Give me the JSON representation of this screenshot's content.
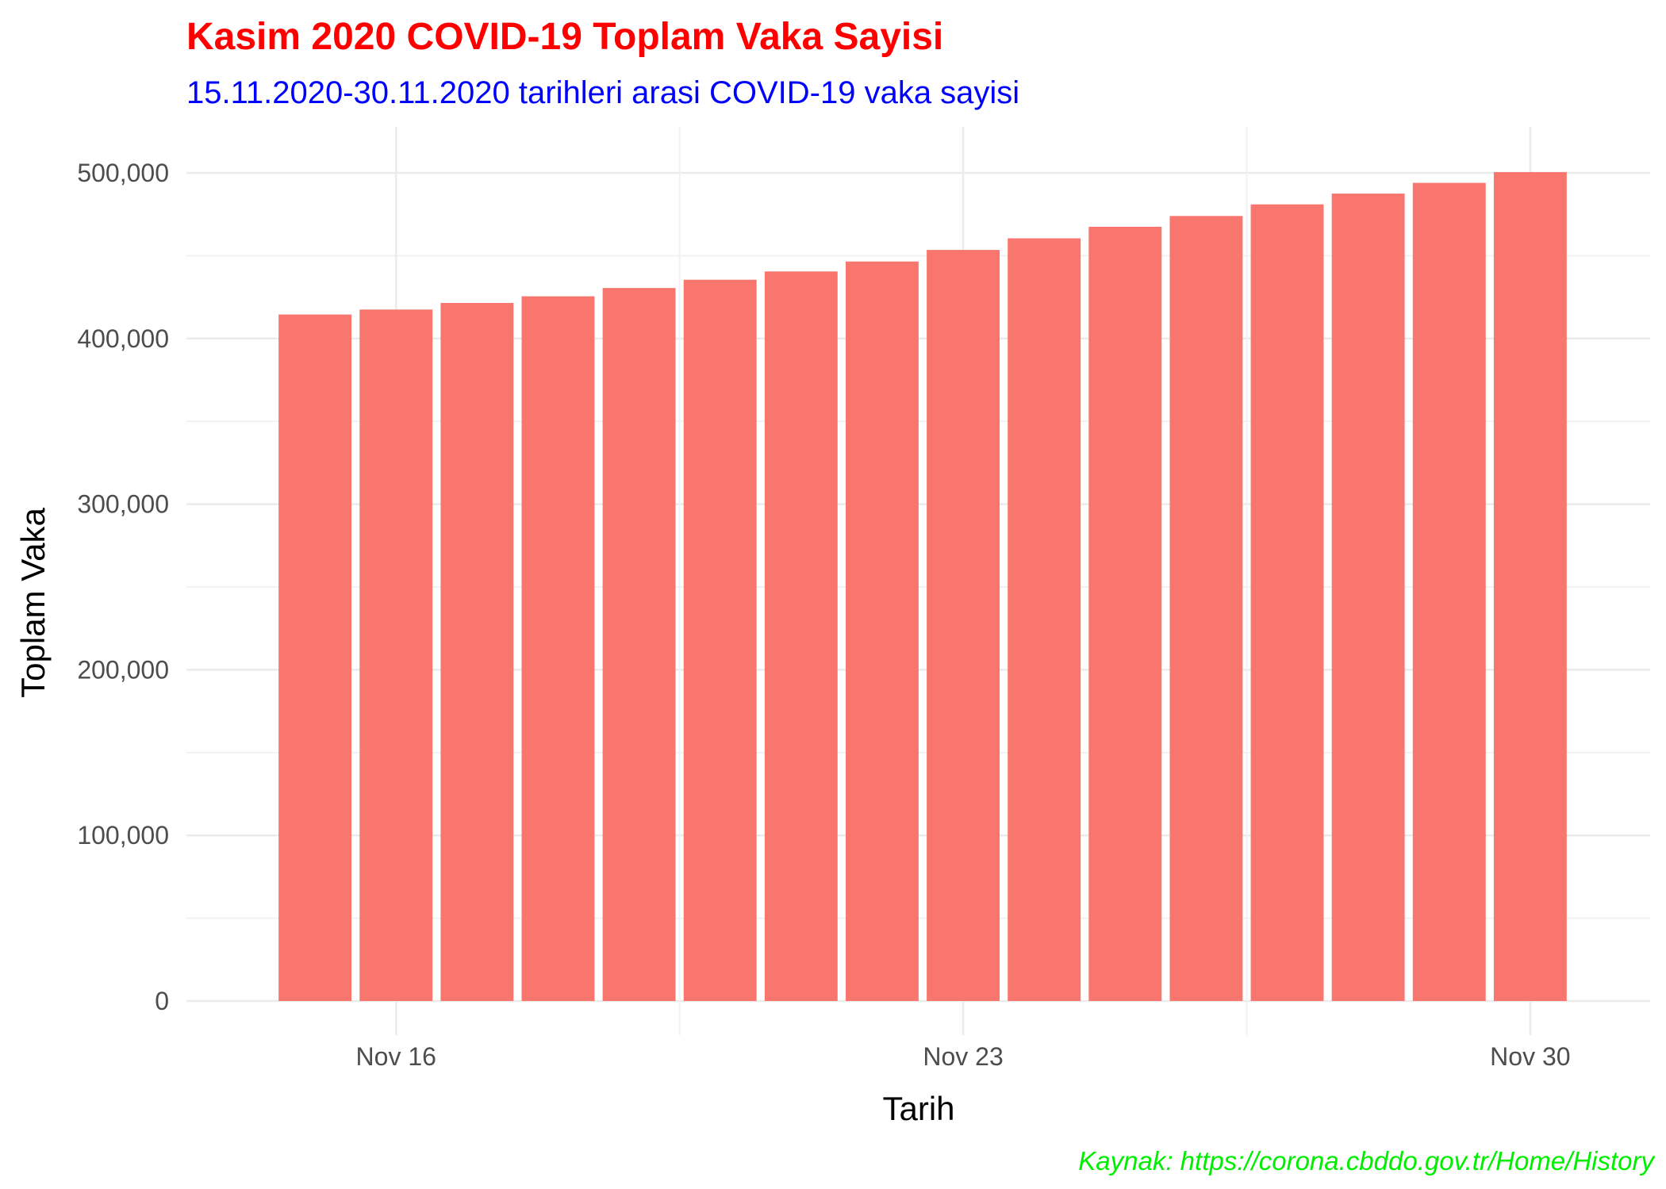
{
  "colors": {
    "title": "#ff0000",
    "subtitle": "#0000ff",
    "caption": "#00ee00",
    "bar": "#f8766d",
    "grid_major": "#ebebeb",
    "grid_minor": "#f2f2f2",
    "tick_text": "#4d4d4d"
  },
  "chart_data": {
    "type": "bar",
    "title": "Kasim 2020 COVID-19 Toplam Vaka Sayisi",
    "subtitle": "15.11.2020-30.11.2020 tarihleri arasi COVID-19 vaka sayisi",
    "xlabel": "Tarih",
    "ylabel": "Toplam Vaka",
    "caption": "Kaynak: https://corona.cbddo.gov.tr/Home/History",
    "x_ticks": [
      "Nov 16",
      "Nov 23",
      "Nov 30"
    ],
    "y_ticks": [
      "0",
      "100,000",
      "200,000",
      "300,000",
      "400,000",
      "500,000"
    ],
    "ylim": [
      0,
      520000
    ],
    "xlim": [
      "2020-11-14",
      "2020-12-01"
    ],
    "grid": true,
    "legend": "none",
    "categories": [
      "2020-11-15",
      "2020-11-16",
      "2020-11-17",
      "2020-11-18",
      "2020-11-19",
      "2020-11-20",
      "2020-11-21",
      "2020-11-22",
      "2020-11-23",
      "2020-11-24",
      "2020-11-25",
      "2020-11-26",
      "2020-11-27",
      "2020-11-28",
      "2020-11-29",
      "2020-11-30"
    ],
    "values": [
      414500,
      417500,
      421500,
      425500,
      430500,
      435500,
      440500,
      446500,
      453500,
      460500,
      467500,
      474000,
      481000,
      487500,
      494000,
      500500
    ]
  }
}
